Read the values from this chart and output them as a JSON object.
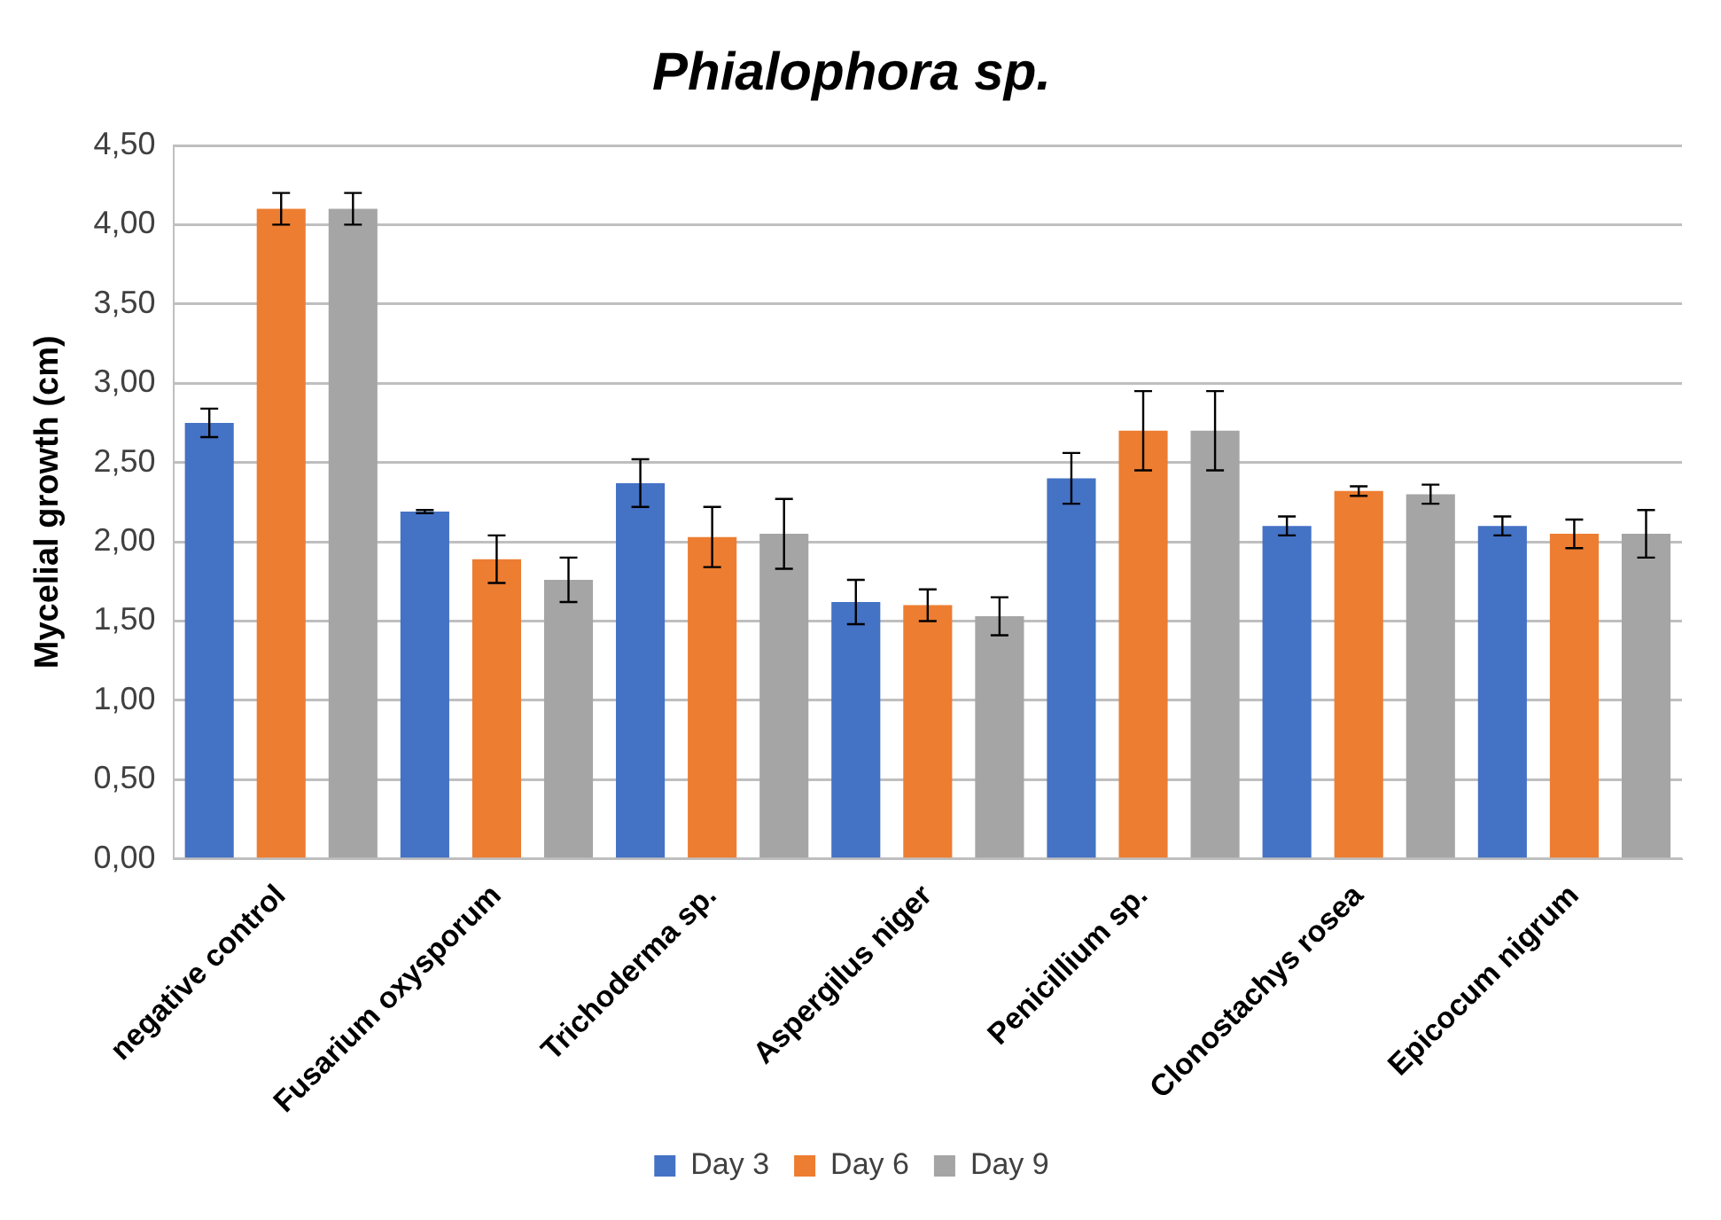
{
  "chart_data": {
    "type": "bar",
    "title": "Phialophora sp.",
    "ylabel": "Mycelial growth (cm)",
    "categories": [
      "negative control",
      "Fusarium oxysporum",
      "Trichoderma sp.",
      "Aspergilus niger",
      "Penicillium sp.",
      "Clonostachys rosea",
      "Epicocum nigrum"
    ],
    "series": [
      {
        "name": "Day 3",
        "color": "#4472c4",
        "values": [
          2.75,
          2.19,
          2.37,
          1.62,
          2.4,
          2.1,
          2.1
        ],
        "errors": [
          0.09,
          0.01,
          0.15,
          0.14,
          0.16,
          0.06,
          0.06
        ]
      },
      {
        "name": "Day 6",
        "color": "#ed7d31",
        "values": [
          4.1,
          1.89,
          2.03,
          1.6,
          2.7,
          2.32,
          2.05
        ],
        "errors": [
          0.1,
          0.15,
          0.19,
          0.1,
          0.25,
          0.03,
          0.09
        ]
      },
      {
        "name": "Day 9",
        "color": "#a5a5a5",
        "values": [
          4.1,
          1.76,
          2.05,
          1.53,
          2.7,
          2.3,
          2.05
        ],
        "errors": [
          0.1,
          0.14,
          0.22,
          0.12,
          0.25,
          0.06,
          0.15
        ]
      }
    ],
    "ylim": [
      0,
      4.5
    ],
    "yticks": [
      {
        "value": 0,
        "label": "0,00"
      },
      {
        "value": 0.5,
        "label": "0,50"
      },
      {
        "value": 1,
        "label": "1,00"
      },
      {
        "value": 1.5,
        "label": "1,50"
      },
      {
        "value": 2,
        "label": "2,00"
      },
      {
        "value": 2.5,
        "label": "2,50"
      },
      {
        "value": 3,
        "label": "3,00"
      },
      {
        "value": 3.5,
        "label": "3,50"
      },
      {
        "value": 4,
        "label": "4,00"
      },
      {
        "value": 4.5,
        "label": "4,50"
      }
    ],
    "grid": "y",
    "legend": "bottom"
  }
}
